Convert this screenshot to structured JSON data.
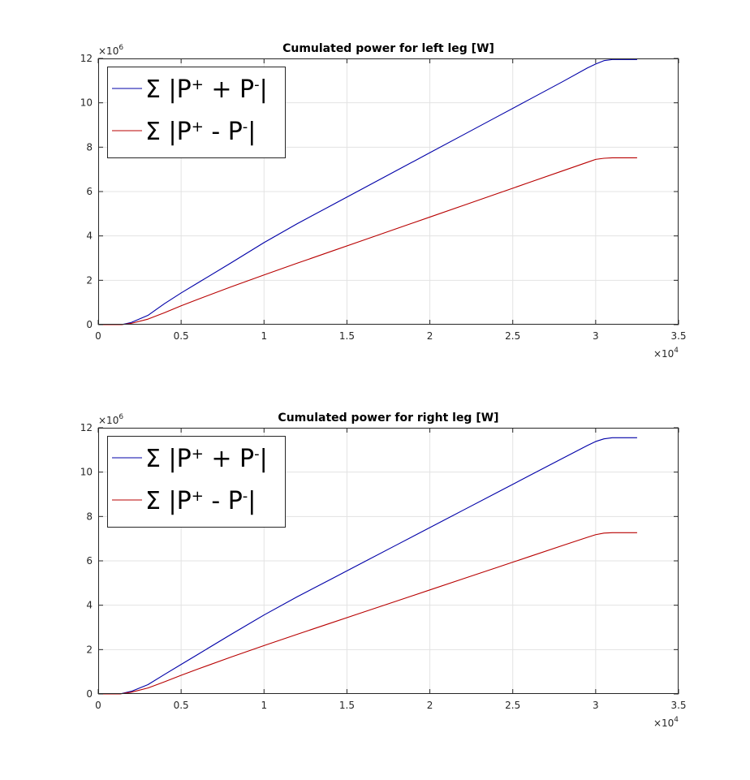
{
  "chart_data": [
    {
      "type": "line",
      "title": "Cumulated power for left leg [W]",
      "xlabel": "",
      "ylabel": "",
      "xlim": [
        0,
        35000
      ],
      "ylim": [
        0,
        12000000
      ],
      "x_ticks": [
        "0",
        "0.5",
        "1",
        "1.5",
        "2",
        "2.5",
        "3",
        "3.5"
      ],
      "y_ticks": [
        "0",
        "2",
        "4",
        "6",
        "8",
        "10",
        "12"
      ],
      "x_multiplier": {
        "base": "×10",
        "exp": "4"
      },
      "y_multiplier": {
        "base": "×10",
        "exp": "6"
      },
      "grid": true,
      "legend_position": "top-left",
      "series": [
        {
          "name": "Σ |P⁺ + P⁻|",
          "legend": {
            "sym": "Σ",
            "pre": " |P",
            "sup1": "+",
            "mid": " + P",
            "sup2": "-",
            "post": "|"
          },
          "color": "#0000a8",
          "x": [
            0,
            1400,
            2000,
            3000,
            4000,
            5000,
            6000,
            8000,
            10000,
            12000,
            14000,
            16000,
            18000,
            20000,
            22000,
            24000,
            26000,
            28000,
            29500,
            30000,
            30500,
            31000,
            32500
          ],
          "y": [
            0,
            0,
            100000,
            420000,
            950000,
            1430000,
            1880000,
            2780000,
            3700000,
            4550000,
            5350000,
            6150000,
            6950000,
            7750000,
            8550000,
            9350000,
            10150000,
            10950000,
            11570000,
            11750000,
            11900000,
            11950000,
            11950000
          ]
        },
        {
          "name": "Σ |P⁺ - P⁻|",
          "legend": {
            "sym": "Σ",
            "pre": " |P",
            "sup1": "+",
            "mid": " - P",
            "sup2": "-",
            "post": "|"
          },
          "color": "#b80000",
          "x": [
            0,
            1400,
            2000,
            3000,
            4000,
            5000,
            6000,
            8000,
            10000,
            12000,
            14000,
            16000,
            18000,
            20000,
            22000,
            24000,
            26000,
            28000,
            29500,
            30000,
            30500,
            31000,
            32500
          ],
          "y": [
            0,
            0,
            60000,
            250000,
            540000,
            850000,
            1140000,
            1700000,
            2240000,
            2770000,
            3290000,
            3810000,
            4330000,
            4850000,
            5370000,
            5890000,
            6410000,
            6930000,
            7320000,
            7450000,
            7500000,
            7520000,
            7520000
          ]
        }
      ]
    },
    {
      "type": "line",
      "title": "Cumulated power for right leg [W]",
      "xlabel": "",
      "ylabel": "",
      "xlim": [
        0,
        35000
      ],
      "ylim": [
        0,
        12000000
      ],
      "x_ticks": [
        "0",
        "0.5",
        "1",
        "1.5",
        "2",
        "2.5",
        "3",
        "3.5"
      ],
      "y_ticks": [
        "0",
        "2",
        "4",
        "6",
        "8",
        "10",
        "12"
      ],
      "x_multiplier": {
        "base": "×10",
        "exp": "4"
      },
      "y_multiplier": {
        "base": "×10",
        "exp": "6"
      },
      "grid": true,
      "legend_position": "top-left",
      "series": [
        {
          "name": "Σ |P⁺ + P⁻|",
          "legend": {
            "sym": "Σ",
            "pre": " |P",
            "sup1": "+",
            "mid": " + P",
            "sup2": "-",
            "post": "|"
          },
          "color": "#0000a8",
          "x": [
            0,
            1300,
            2000,
            3000,
            4000,
            5000,
            6000,
            8000,
            10000,
            12000,
            14000,
            16000,
            18000,
            20000,
            22000,
            24000,
            26000,
            28000,
            29500,
            30000,
            30500,
            31000,
            32500
          ],
          "y": [
            0,
            0,
            120000,
            420000,
            880000,
            1330000,
            1780000,
            2680000,
            3560000,
            4380000,
            5160000,
            5940000,
            6720000,
            7500000,
            8280000,
            9060000,
            9840000,
            10620000,
            11200000,
            11380000,
            11500000,
            11550000,
            11550000
          ]
        },
        {
          "name": "Σ |P⁺ - P⁻|",
          "legend": {
            "sym": "Σ",
            "pre": " |P",
            "sup1": "+",
            "mid": " - P",
            "sup2": "-",
            "post": "|"
          },
          "color": "#b80000",
          "x": [
            0,
            1300,
            2000,
            3000,
            4000,
            5000,
            6000,
            8000,
            10000,
            12000,
            14000,
            16000,
            18000,
            20000,
            22000,
            24000,
            26000,
            28000,
            29500,
            30000,
            30500,
            31000,
            32500
          ],
          "y": [
            0,
            0,
            80000,
            270000,
            550000,
            840000,
            1120000,
            1660000,
            2180000,
            2690000,
            3190000,
            3690000,
            4190000,
            4690000,
            5190000,
            5690000,
            6190000,
            6690000,
            7060000,
            7180000,
            7250000,
            7270000,
            7270000
          ]
        }
      ]
    }
  ]
}
